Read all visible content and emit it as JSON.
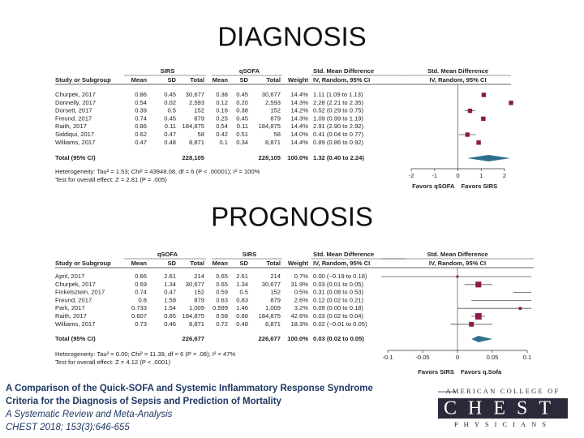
{
  "sections": [
    {
      "title": "DIAGNOSIS",
      "group_headers": [
        "SIRS",
        "qSOFA"
      ],
      "column_headers": [
        "Study or Subgroup",
        "Mean",
        "SD",
        "Total",
        "Mean",
        "SD",
        "Total",
        "Weight"
      ],
      "effect_header": [
        "Std. Mean Difference",
        "IV, Random, 95% CI"
      ],
      "plot_header": [
        "Std. Mean Difference",
        "IV, Random, 95% CI"
      ],
      "rows": [
        {
          "study": "Churpek, 2017",
          "cells": [
            "0.86",
            "0.45",
            "30,677",
            "0.38",
            "0.45",
            "30,677"
          ],
          "weight": "14.4%",
          "ci": "1.11 (1.09 to 1.13)",
          "effect": 1.11,
          "lower": 1.09,
          "upper": 1.13
        },
        {
          "study": "Donnelly, 2017",
          "cells": [
            "0.54",
            "0.02",
            "2,593",
            "0.12",
            "0.20",
            "2,593"
          ],
          "weight": "14.3%",
          "ci": "2.28 (2.21 to 2.35)",
          "effect": 2.28,
          "lower": 2.21,
          "upper": 2.35
        },
        {
          "study": "Dorsett, 2017",
          "cells": [
            "0.39",
            "0.5",
            "152",
            "0.16",
            "0.38",
            "152"
          ],
          "weight": "14.2%",
          "ci": "0.52 (0.29 to 0.75)",
          "effect": 0.52,
          "lower": 0.29,
          "upper": 0.75
        },
        {
          "study": "Freund, 2017",
          "cells": [
            "0.74",
            "0.45",
            "879",
            "0.25",
            "0.45",
            "879"
          ],
          "weight": "14.3%",
          "ci": "1.09 (0.99 to 1.19)",
          "effect": 1.09,
          "lower": 0.99,
          "upper": 1.19
        },
        {
          "study": "Raith, 2017",
          "cells": [
            "0.86",
            "0.11",
            "184,875",
            "0.54",
            "0.11",
            "184,875"
          ],
          "weight": "14.4%",
          "ci": "2.91 (2.90 to 2.92)",
          "effect": 2.91,
          "lower": 2.9,
          "upper": 2.92
        },
        {
          "study": "Siddiqui, 2017",
          "cells": [
            "0.62",
            "0.47",
            "58",
            "0.42",
            "0.51",
            "58"
          ],
          "weight": "14.0%",
          "ci": "0.41 (0.04 to 0.77)",
          "effect": 0.41,
          "lower": 0.04,
          "upper": 0.77
        },
        {
          "study": "Williams, 2017",
          "cells": [
            "0.47",
            "0.48",
            "8,871",
            "0.1",
            "0.34",
            "8,871"
          ],
          "weight": "14.4%",
          "ci": "0.89 (0.86 to 0.92)",
          "effect": 0.89,
          "lower": 0.86,
          "upper": 0.92
        }
      ],
      "total": {
        "label": "Total (95% CI)",
        "n1": "228,105",
        "n2": "228,105",
        "weight": "100.0%",
        "ci": "1.32 (0.40 to 2.24)",
        "effect": 1.32,
        "lower": 0.4,
        "upper": 2.24
      },
      "heterogeneity": "Heterogeneity: Tau² = 1.53; Chi² = 43948.08, df = 6 (P < .00001); I² = 100%",
      "overall_effect": "Test for overall effect: Z = 2.81 (P = .005)",
      "xlim": [
        -2,
        2
      ],
      "xticks": [
        -2,
        -1,
        0,
        1,
        2
      ],
      "favors": [
        "Favors qSOFA",
        "Favors SIRS"
      ]
    },
    {
      "title": "PROGNOSIS",
      "group_headers": [
        "qSOFA",
        "SIRS"
      ],
      "column_headers": [
        "Study or Subgroup",
        "Mean",
        "SD",
        "Total",
        "Mean",
        "SD",
        "Total",
        "Weight"
      ],
      "effect_header": [
        "Std. Mean Difference",
        "IV, Random, 95% CI"
      ],
      "plot_header": [
        "Std. Mean Difference",
        "IV, Random, 95% CI"
      ],
      "rows": [
        {
          "study": "April, 2017",
          "cells": [
            "0.66",
            "2.61",
            "214",
            "0.65",
            "2.61",
            "214"
          ],
          "weight": "0.7%",
          "ci": "0.00 (−0.19 to 0.18)",
          "effect": 0.0,
          "lower": -0.19,
          "upper": 0.18
        },
        {
          "study": "Churpek, 2017",
          "cells": [
            "0.69",
            "1.34",
            "30,677",
            "0.65",
            "1.34",
            "30,677"
          ],
          "weight": "31.9%",
          "ci": "0.03 (0.01 to 0.05)",
          "effect": 0.03,
          "lower": 0.01,
          "upper": 0.05
        },
        {
          "study": "Finkelsztein, 2017",
          "cells": [
            "0.74",
            "0.47",
            "152",
            "0.59",
            "0.5",
            "152"
          ],
          "weight": "0.5%",
          "ci": "0.31 (0.08 to 0.53)",
          "effect": 0.31,
          "lower": 0.08,
          "upper": 0.53
        },
        {
          "study": "Freund, 2017",
          "cells": [
            "0.8",
            "1.59",
            "879",
            "0.63",
            "0.83",
            "879"
          ],
          "weight": "2.6%",
          "ci": "0.12 (0.02 to 0.21)",
          "effect": 0.12,
          "lower": 0.02,
          "upper": 0.21
        },
        {
          "study": "Park, 2017",
          "cells": [
            "0.733",
            "1.54",
            "1,009",
            "0.599",
            "1.46",
            "1,009"
          ],
          "weight": "3.2%",
          "ci": "0.09 (0.00 to 0.18)",
          "effect": 0.09,
          "lower": 0.0,
          "upper": 0.18
        },
        {
          "study": "Raith, 2017",
          "cells": [
            "0.607",
            "0.85",
            "184,875",
            "0.58",
            "0.88",
            "184,875"
          ],
          "weight": "42.6%",
          "ci": "0.03 (0.02 to 0.04)",
          "effect": 0.03,
          "lower": 0.02,
          "upper": 0.04
        },
        {
          "study": "Williams, 2017",
          "cells": [
            "0.73",
            "0.46",
            "8,871",
            "0.72",
            "0.48",
            "8,871"
          ],
          "weight": "18.3%",
          "ci": "0.02 (−0.01 to 0.05)",
          "effect": 0.02,
          "lower": -0.01,
          "upper": 0.05
        }
      ],
      "total": {
        "label": "Total (95% CI)",
        "n1": "226,677",
        "n2": "226,677",
        "weight": "100.0%",
        "ci": "0.03 (0.02 to 0.05)",
        "effect": 0.03,
        "lower": 0.02,
        "upper": 0.05
      },
      "heterogeneity": "Heterogeneity: Tau² = 0.00; Chi² = 11.39, df = 6 (P = .08); I² = 47%",
      "overall_effect": "Test for overall effect: Z = 4.12 (P < .0001)",
      "xlim": [
        -0.1,
        0.1
      ],
      "xticks": [
        -0.1,
        -0.05,
        0,
        0.05,
        0.1
      ],
      "favors": [
        "Favors SIRS",
        "Favors q.Sofa"
      ]
    }
  ],
  "footer": {
    "title": [
      "A Comparison of the Quick-SOFA and Systemic Inflammatory Response Syndrome",
      "Criteria for the Diagnosis of Sepsis and Prediction of Mortality"
    ],
    "subtitle": "A Systematic Review and Meta-Analysis",
    "citation": "CHEST 2018; 153(3):646-655"
  },
  "logo": {
    "top": "AMERICAN COLLEGE OF",
    "middle": "CHEST",
    "bottom": "PHYSICIANS"
  }
}
